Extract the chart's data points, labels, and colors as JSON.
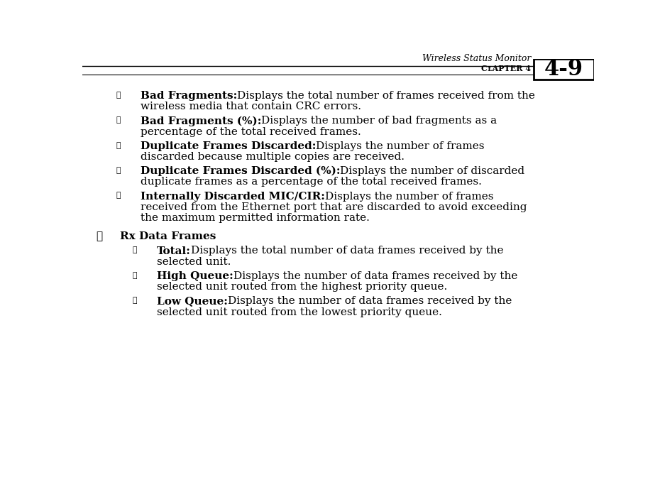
{
  "bg_color": "#ffffff",
  "header_title": "Wireless Status Monitor",
  "page_number": "4-9",
  "items": [
    {
      "type": "sub_bullet",
      "bold": "Bad Fragments:",
      "normal": " Displays the total number of frames received from the wireless media that contain CRC errors."
    },
    {
      "type": "sub_bullet",
      "bold": "Bad Fragments (%):",
      "normal": " Displays the number of bad fragments as a percentage of the total received frames."
    },
    {
      "type": "sub_bullet",
      "bold": "Duplicate Frames Discarded:",
      "normal": " Displays the number of frames discarded because multiple copies are received."
    },
    {
      "type": "sub_bullet",
      "bold": "Duplicate Frames Discarded (%):",
      "normal": " Displays the number of discarded duplicate frames as a percentage of the total received frames."
    },
    {
      "type": "sub_bullet",
      "bold": "Internally Discarded MIC/CIR:",
      "normal": " Displays the number of frames received from the Ethernet port that are discarded to avoid exceeding the maximum permitted information rate."
    },
    {
      "type": "main_bullet",
      "bold": "Rx Data Frames",
      "normal": ""
    },
    {
      "type": "sub_bullet2",
      "bold": "Total:",
      "normal": " Displays the total number of data frames received by the selected unit."
    },
    {
      "type": "sub_bullet2",
      "bold": "High Queue:",
      "normal": " Displays the number of data frames received by the selected unit routed from the highest priority queue."
    },
    {
      "type": "sub_bullet2",
      "bold": "Low Queue:",
      "normal": " Displays the number of data frames received by the selected unit routed from the lowest priority queue."
    }
  ]
}
